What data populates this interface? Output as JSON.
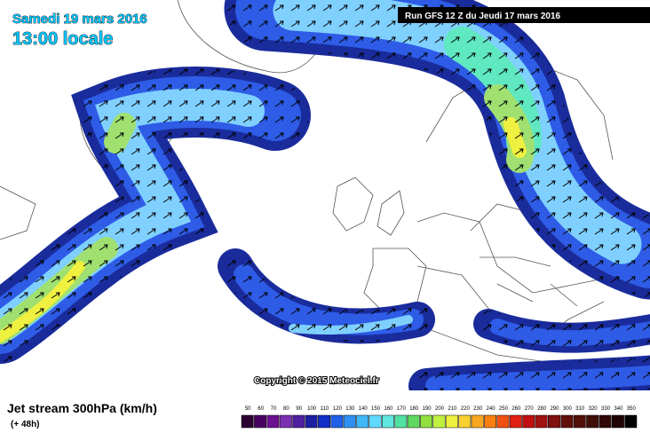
{
  "header": {
    "date": "Samedi 19 mars 2016",
    "time": "13:00 locale"
  },
  "run": "Run GFS 12 Z du Jeudi 17 mars 2016",
  "copyright": "Copyright © 2015 Meteociel.fr",
  "footer": {
    "title": "Jet stream 300hPa (km/h)",
    "lead": "(+ 48h)"
  },
  "legend": {
    "values": [
      50,
      60,
      70,
      80,
      90,
      100,
      110,
      120,
      130,
      140,
      150,
      160,
      170,
      180,
      190,
      200,
      210,
      220,
      230,
      240,
      250,
      260,
      270,
      280,
      290,
      300,
      310,
      320,
      330,
      340,
      350
    ],
    "colors": [
      "#2a0030",
      "#4a0060",
      "#6a1090",
      "#7a30b0",
      "#5020a0",
      "#1a20a0",
      "#1030c8",
      "#2060e8",
      "#3090f0",
      "#40b8f8",
      "#60d8ff",
      "#60e8e0",
      "#50e0a0",
      "#60d860",
      "#90e040",
      "#c0f040",
      "#f0f040",
      "#f8d030",
      "#f8a820",
      "#f88010",
      "#f05010",
      "#e02010",
      "#c01010",
      "#a01010",
      "#801010",
      "#601008",
      "#501008",
      "#401008",
      "#300806",
      "#200404",
      "#000000"
    ]
  }
}
